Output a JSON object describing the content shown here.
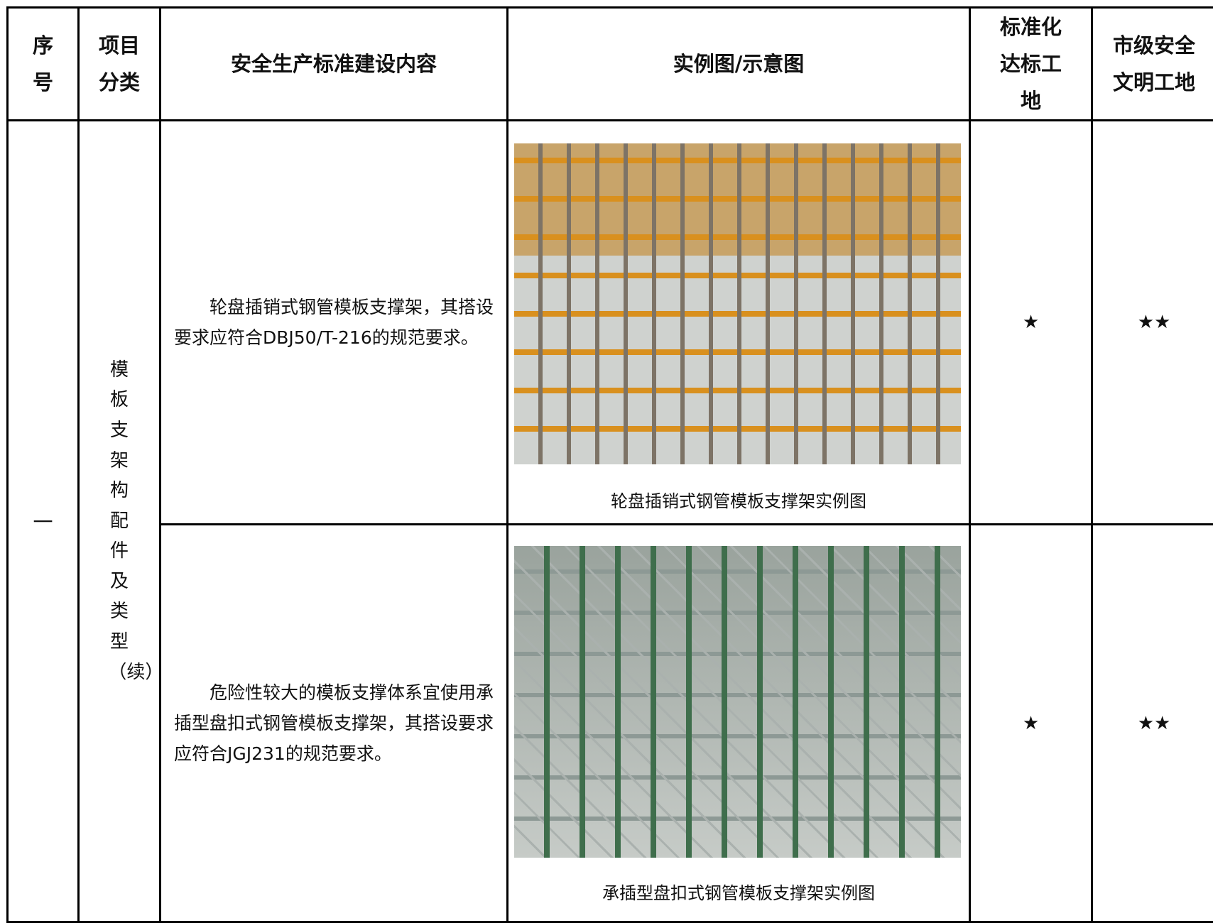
{
  "table": {
    "header": [
      "序号",
      "项目分类",
      "安全生产标准建设内容",
      "实例图/示意图",
      "标准化达标工地",
      "市级安全文明工地"
    ],
    "number": "一",
    "category": "模板支架构配件及类型（续）",
    "rows": [
      {
        "content": "轮盘插销式钢管模板支撑架，其搭设要求应符合DBJ50/T-216的规范要求。",
        "caption": "轮盘插销式钢管模板支撑架实例图",
        "standard": "★",
        "city": "★★"
      },
      {
        "content": "危险性较大的模板支撑体系宜使用承插型盘扣式钢管模板支撑架，其搭设要求应符合JGJ231的规范要求。",
        "caption": "承插型盘扣式钢管模板支撑架实例图",
        "standard": "★",
        "city": "★★"
      }
    ]
  }
}
